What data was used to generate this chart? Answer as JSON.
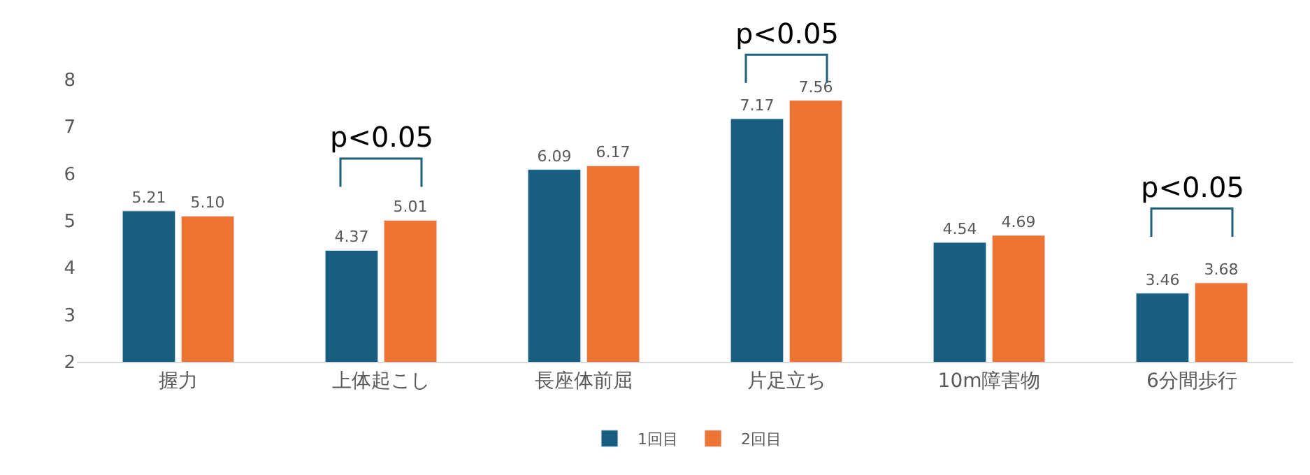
{
  "chart_data": {
    "type": "bar",
    "categories": [
      "握力",
      "上体起こし",
      "長座体前屈",
      "片足立ち",
      "10m障害物",
      "6分間歩行"
    ],
    "series": [
      {
        "name": "1回目",
        "color": "#175e80",
        "values": [
          5.21,
          4.37,
          6.09,
          7.17,
          4.54,
          3.46
        ],
        "value_labels": [
          "5.21",
          "4.37",
          "6.09",
          "7.17",
          "4.54",
          "3.46"
        ]
      },
      {
        "name": "2回目",
        "color": "#ed7433",
        "values": [
          5.1,
          5.01,
          6.17,
          7.56,
          4.69,
          3.68
        ],
        "value_labels": [
          "5.10",
          "5.01",
          "6.17",
          "7.56",
          "4.69",
          "3.68"
        ]
      }
    ],
    "ylim": [
      2,
      8
    ],
    "yticks": [
      2,
      3,
      4,
      5,
      6,
      7,
      8
    ],
    "legend": "bottom",
    "grid": false,
    "annotations": [
      "p<0.05",
      "p<0.05",
      "p<0.05"
    ]
  }
}
